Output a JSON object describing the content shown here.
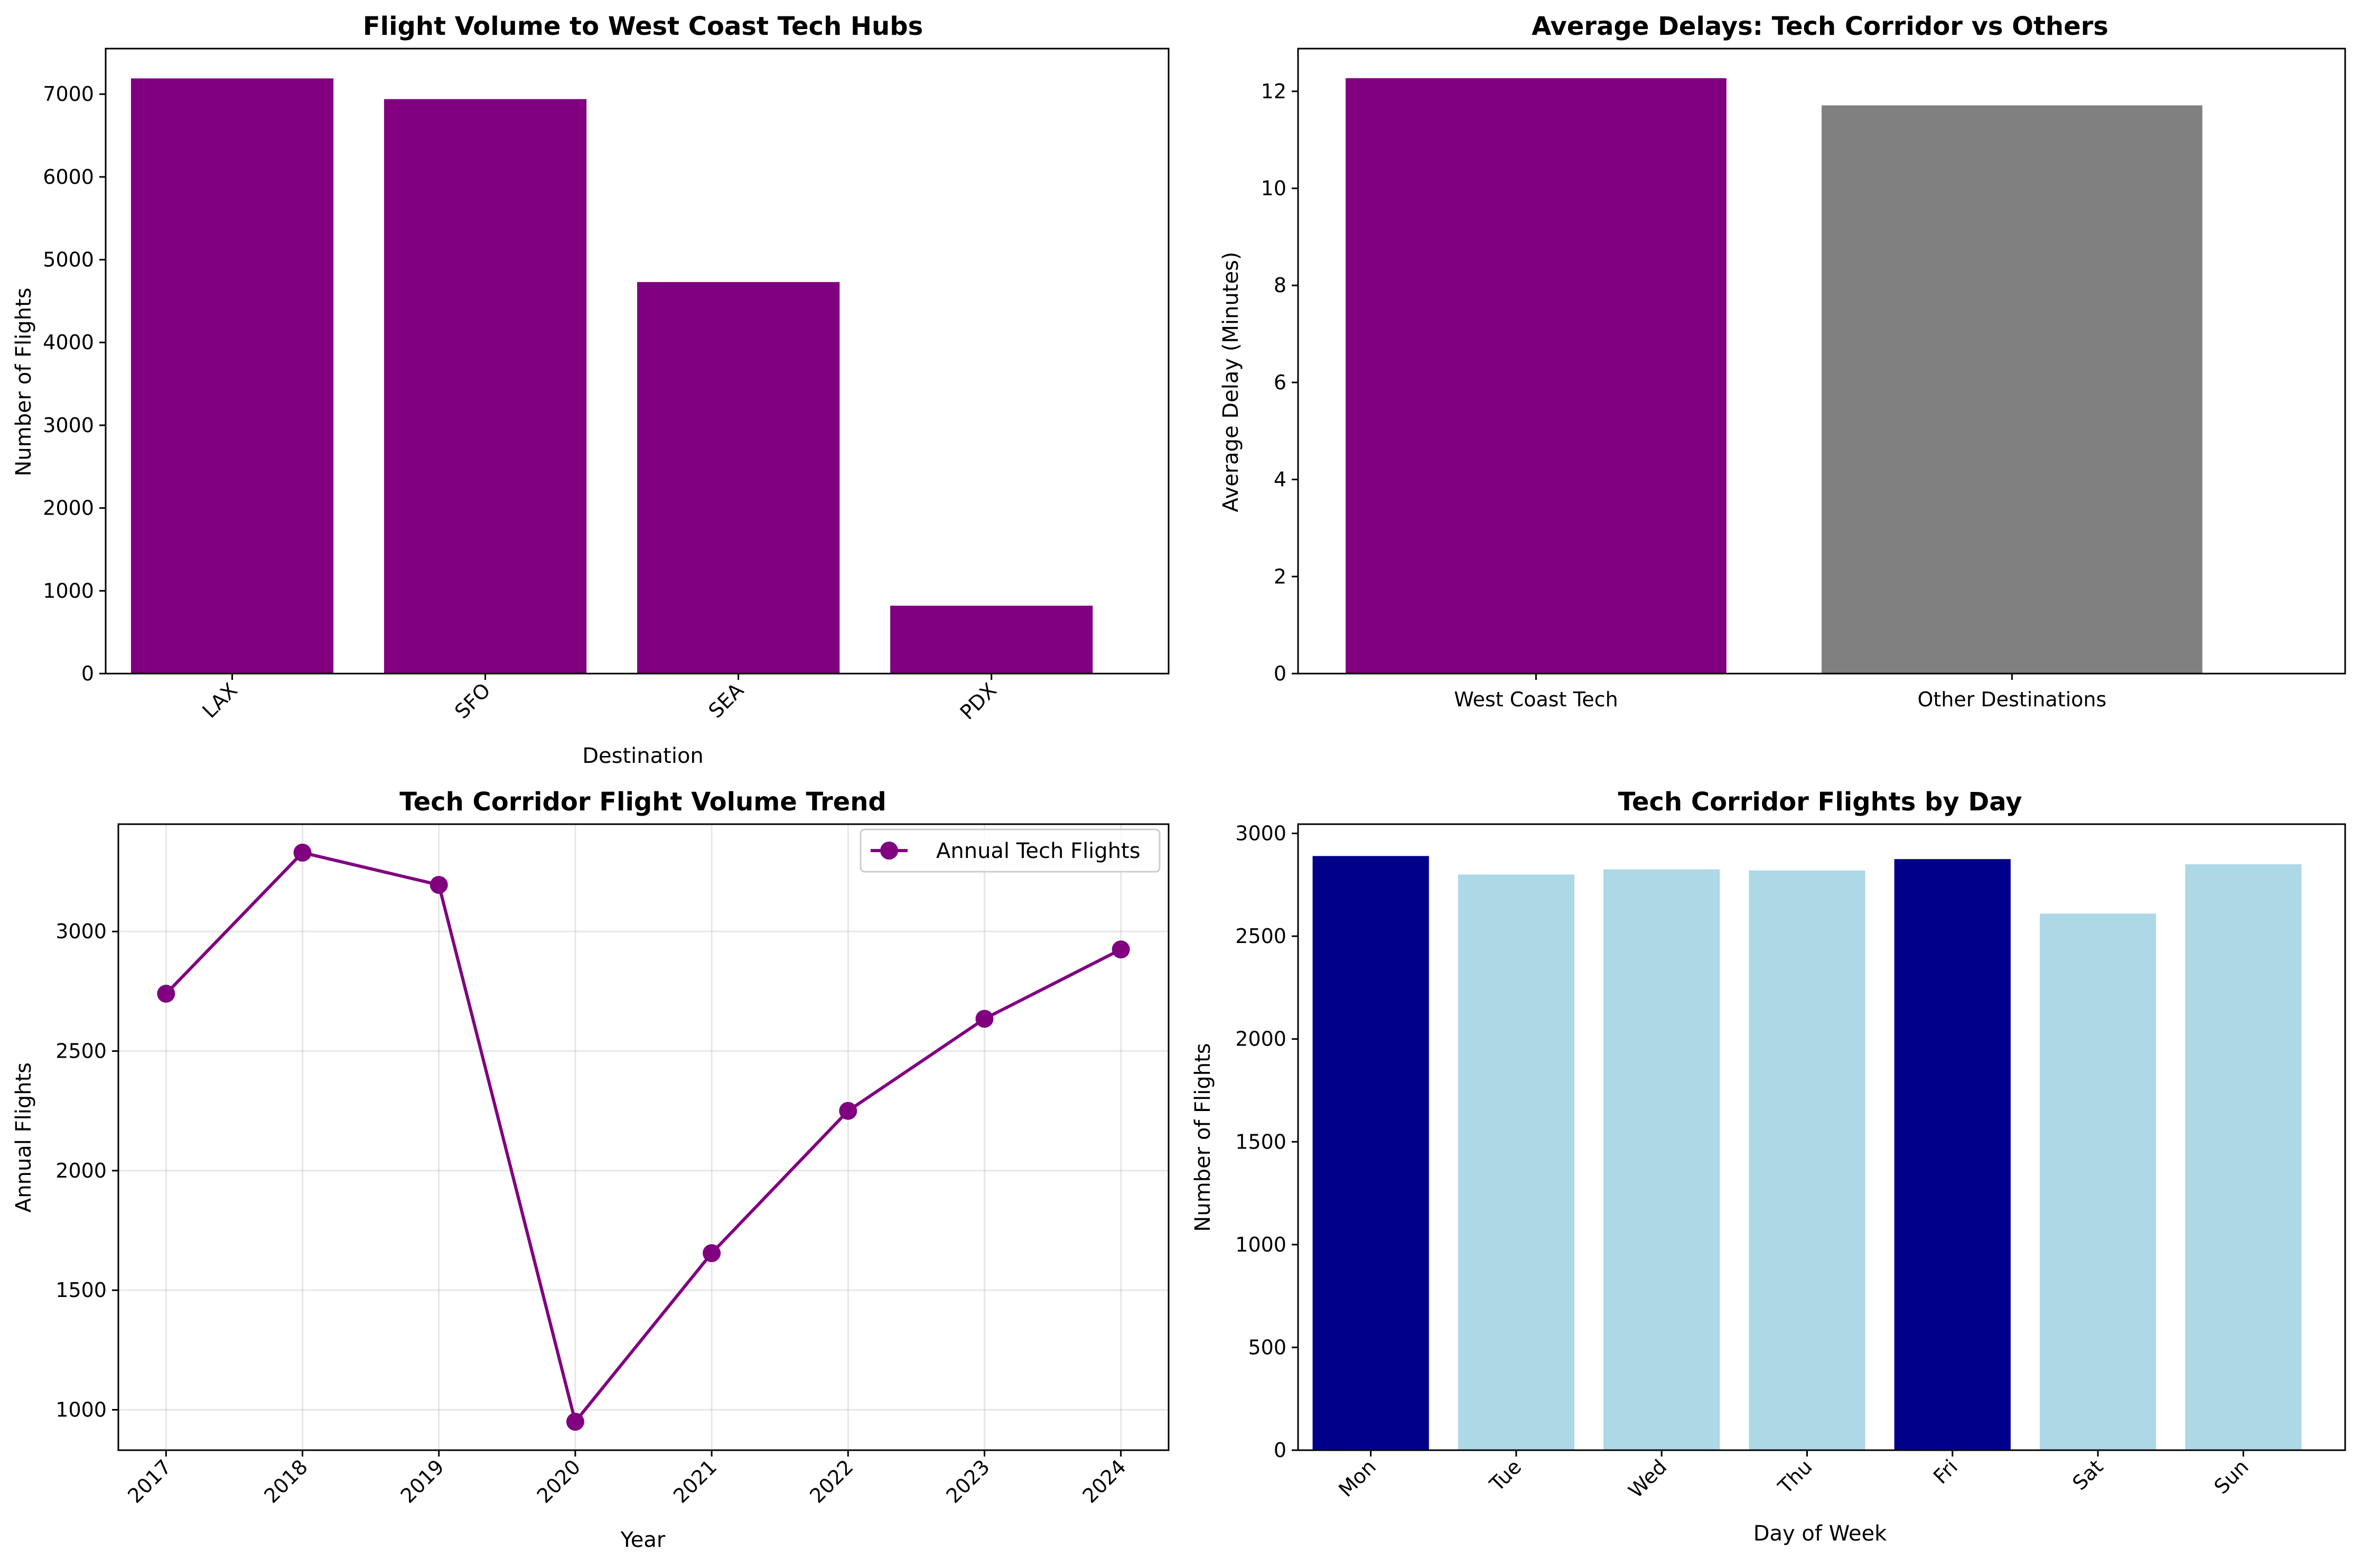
{
  "chart_data": [
    {
      "id": "volume",
      "type": "bar",
      "title": "Flight Volume to West Coast Tech Hubs",
      "xlabel": "Destination",
      "ylabel": "Number of Flights",
      "categories": [
        "LAX",
        "SFO",
        "SEA",
        "PDX"
      ],
      "values": [
        7190,
        6940,
        4730,
        820
      ],
      "colors": [
        "#800080",
        "#800080",
        "#800080",
        "#800080"
      ],
      "ylim": [
        0,
        7550
      ],
      "yticks": [
        0,
        1000,
        2000,
        3000,
        4000,
        5000,
        6000,
        7000
      ],
      "rotate_xticks": true,
      "grid": false
    },
    {
      "id": "delays",
      "type": "bar",
      "title": "Average Delays: Tech Corridor vs Others",
      "xlabel": "",
      "ylabel": "Average Delay (Minutes)",
      "categories": [
        "West Coast Tech",
        "Other Destinations"
      ],
      "values": [
        12.27,
        11.71
      ],
      "colors": [
        "#800080",
        "#808080"
      ],
      "ylim": [
        0,
        12.88
      ],
      "yticks": [
        0,
        2,
        4,
        6,
        8,
        10,
        12
      ],
      "rotate_xticks": false,
      "grid": false
    },
    {
      "id": "trend",
      "type": "line",
      "title": "Tech Corridor Flight Volume Trend",
      "xlabel": "Year",
      "ylabel": "Annual Flights",
      "x": [
        "2017",
        "2018",
        "2019",
        "2020",
        "2021",
        "2022",
        "2023",
        "2024"
      ],
      "series": [
        {
          "name": "Annual Tech Flights",
          "values": [
            2740,
            3330,
            3195,
            950,
            1655,
            2250,
            2635,
            2925
          ],
          "color": "#800080"
        }
      ],
      "ylim": [
        831,
        3449
      ],
      "yticks": [
        1000,
        1500,
        2000,
        2500,
        3000
      ],
      "rotate_xticks": true,
      "grid": true,
      "legend": "top-right"
    },
    {
      "id": "byday",
      "type": "bar",
      "title": "Tech Corridor Flights by Day",
      "xlabel": "Day of Week",
      "ylabel": "Number of Flights",
      "categories": [
        "Mon",
        "Tue",
        "Wed",
        "Thu",
        "Fri",
        "Sat",
        "Sun"
      ],
      "values": [
        2890,
        2800,
        2825,
        2820,
        2875,
        2610,
        2850
      ],
      "colors": [
        "#00008b",
        "#add8e6",
        "#add8e6",
        "#add8e6",
        "#00008b",
        "#add8e6",
        "#add8e6"
      ],
      "ylim": [
        0,
        3045
      ],
      "yticks": [
        0,
        500,
        1000,
        1500,
        2000,
        2500,
        3000
      ],
      "rotate_xticks": true,
      "grid": false
    }
  ]
}
